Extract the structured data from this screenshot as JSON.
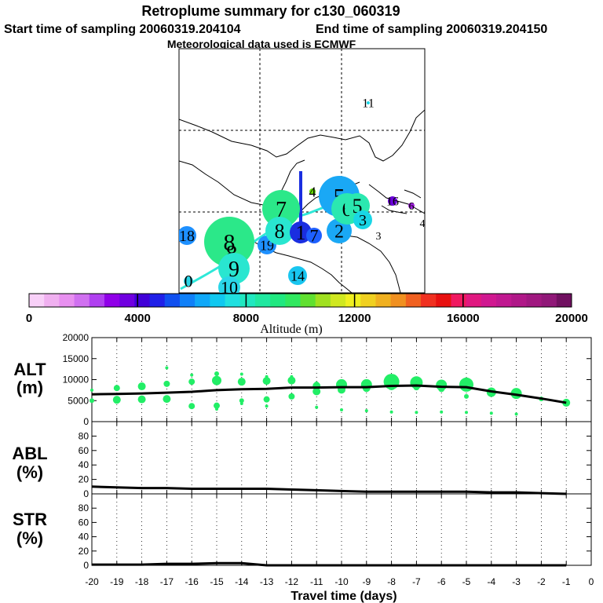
{
  "header": {
    "title": "Retroplume summary for c130_060319",
    "start_label": "Start time of sampling 20060319.204104",
    "end_label": "End time of sampling 20060319.204150",
    "met_label": "Meteorological data used is ECMWF"
  },
  "map": {
    "plume_markers": [
      {
        "label": "11",
        "color": "#19d6e6"
      },
      {
        "label": "18",
        "color": "#1e90ff"
      },
      {
        "label": "8",
        "color": "#2be889"
      },
      {
        "label": "8",
        "color": "#2be889"
      },
      {
        "label": "9",
        "color": "#29e6d0"
      },
      {
        "label": "9",
        "color": "#29e6d0"
      },
      {
        "label": "10",
        "color": "#2ad6e8"
      },
      {
        "label": "0",
        "color": "#2ad6e8"
      },
      {
        "label": "14",
        "color": "#19c6f0"
      },
      {
        "label": "19",
        "color": "#1e90ff"
      },
      {
        "label": "7",
        "color": "#2be889"
      },
      {
        "label": "8",
        "color": "#29e6d0"
      },
      {
        "label": "1",
        "color": "#1a2ee0"
      },
      {
        "label": "7",
        "color": "#1e60ff"
      },
      {
        "label": "2",
        "color": "#1aa8f5"
      },
      {
        "label": "5",
        "color": "#1aa8f5"
      },
      {
        "label": "6",
        "color": "#2be8b0"
      },
      {
        "label": "5",
        "color": "#2be8b0"
      },
      {
        "label": "3",
        "color": "#19d6e6"
      },
      {
        "label": "3",
        "color": "#c000e0"
      },
      {
        "label": "4",
        "color": "#66dd00"
      },
      {
        "label": "16",
        "color": "#6a00d8"
      },
      {
        "label": "6",
        "color": "#a020e0"
      },
      {
        "label": "4",
        "color": "#a020e0"
      }
    ]
  },
  "colorbar": {
    "tick_labels": [
      "0",
      "4000",
      "8000",
      "12000",
      "16000",
      "20000"
    ],
    "axis_label": "Altitude (m)",
    "colors": [
      "#f8d0f8",
      "#f0b0f0",
      "#e890f0",
      "#d070f0",
      "#b040f0",
      "#9000e8",
      "#7000e0",
      "#4000d8",
      "#2020e8",
      "#1050f0",
      "#1080f8",
      "#10a8f8",
      "#10c8f0",
      "#20e0e0",
      "#20e8c0",
      "#20e8a0",
      "#20e880",
      "#30e860",
      "#60e030",
      "#a0e020",
      "#d0e820",
      "#f0f020",
      "#f0d020",
      "#f0b020",
      "#f09020",
      "#f06020",
      "#f03020",
      "#e81010",
      "#f01860",
      "#e01880",
      "#d01890",
      "#c01890",
      "#b01888",
      "#a01880",
      "#901878",
      "#701060"
    ],
    "range": [
      0,
      20000
    ]
  },
  "xaxis": {
    "tick_labels": [
      "-20",
      "-19",
      "-18",
      "-17",
      "-16",
      "-15",
      "-14",
      "-13",
      "-12",
      "-11",
      "-10",
      "-9",
      "-8",
      "-7",
      "-6",
      "-5",
      "-4",
      "-3",
      "-2",
      "-1",
      "0"
    ],
    "label": "Travel time (days)"
  },
  "chart_data": [
    {
      "type": "line",
      "panel": "ALT",
      "ylabel_line1": "ALT",
      "ylabel_line2": "(m)",
      "ylim": [
        0,
        20000
      ],
      "ytick_labels": [
        "0",
        "5000",
        "10000",
        "15000",
        "20000"
      ],
      "x": [
        -20,
        -19,
        -18,
        -17,
        -16,
        -15,
        -14,
        -13,
        -12,
        -11,
        -10,
        -9,
        -8,
        -7,
        -6,
        -5,
        -4,
        -3,
        -2,
        -1
      ],
      "mean_altitude": [
        6500,
        6600,
        6700,
        6900,
        7100,
        7500,
        7700,
        7800,
        8100,
        8100,
        8200,
        8200,
        8500,
        8600,
        8300,
        8200,
        7200,
        6400,
        5500,
        4500
      ],
      "dots_series": [
        {
          "name": "largest",
          "values": [
            7500,
            8000,
            8400,
            9000,
            9500,
            9800,
            9500,
            9700,
            9800,
            8500,
            8800,
            8800,
            9500,
            9300,
            8700,
            8800,
            7000,
            6700,
            5400,
            4500
          ],
          "sizes": [
            2,
            4,
            5,
            4,
            4,
            6,
            5,
            5,
            5,
            5,
            7,
            7,
            10,
            8,
            7,
            9,
            6,
            7,
            3,
            5
          ]
        },
        {
          "name": "secondary",
          "values": [
            5000,
            5200,
            5300,
            5400,
            3700,
            3800,
            5000,
            5300,
            6000,
            7200,
            7600,
            8000,
            8400,
            8200,
            7800,
            6000,
            null,
            null,
            null,
            null
          ],
          "sizes": [
            3,
            5,
            5,
            5,
            4,
            4,
            3,
            4,
            4,
            5,
            5,
            5,
            5,
            4,
            4,
            3,
            0,
            0,
            0,
            0
          ]
        },
        {
          "name": "high",
          "values": [
            null,
            null,
            null,
            12800,
            11100,
            11400,
            11300,
            10700,
            10700,
            9000,
            9000,
            null,
            null,
            null,
            null,
            null,
            null,
            null,
            null,
            null
          ],
          "sizes": [
            0,
            0,
            0,
            2,
            2,
            3,
            2,
            2,
            2,
            3,
            3,
            0,
            0,
            0,
            0,
            0,
            0,
            0,
            0,
            0
          ]
        },
        {
          "name": "low",
          "values": [
            null,
            null,
            null,
            null,
            null,
            3000,
            4300,
            3700,
            null,
            3400,
            2800,
            2600,
            2300,
            2200,
            2300,
            2200,
            2000,
            1800,
            null,
            null
          ],
          "sizes": [
            0,
            0,
            0,
            0,
            0,
            2,
            2,
            2,
            0,
            2,
            2,
            2,
            2,
            2,
            2,
            2,
            2,
            2,
            0,
            0
          ]
        }
      ]
    },
    {
      "type": "line",
      "panel": "ABL",
      "ylabel_line1": "ABL",
      "ylabel_line2": "(%)",
      "ylim": [
        0,
        100
      ],
      "ytick_labels": [
        "0",
        "20",
        "40",
        "60",
        "80"
      ],
      "x": [
        -20,
        -19,
        -18,
        -17,
        -16,
        -15,
        -14,
        -13,
        -12,
        -11,
        -10,
        -9,
        -8,
        -7,
        -6,
        -5,
        -4,
        -3,
        -2,
        -1
      ],
      "values": [
        10,
        9,
        8,
        8,
        7,
        7,
        7,
        7,
        6,
        5,
        4,
        3,
        3,
        3,
        3,
        3,
        2,
        2,
        1,
        0
      ]
    },
    {
      "type": "line",
      "panel": "STR",
      "ylabel_line1": "STR",
      "ylabel_line2": "(%)",
      "ylim": [
        0,
        100
      ],
      "ytick_labels": [
        "0",
        "20",
        "40",
        "60",
        "80"
      ],
      "x": [
        -20,
        -19,
        -18,
        -17,
        -16,
        -15,
        -14,
        -13,
        -12,
        -11,
        -10,
        -9,
        -8,
        -7,
        -6,
        -5,
        -4,
        -3,
        -2,
        -1
      ],
      "values": [
        1,
        1,
        1,
        2,
        2,
        3,
        3,
        0,
        0,
        0,
        0,
        0,
        0,
        0,
        0,
        0,
        0,
        0,
        0,
        0
      ]
    }
  ]
}
